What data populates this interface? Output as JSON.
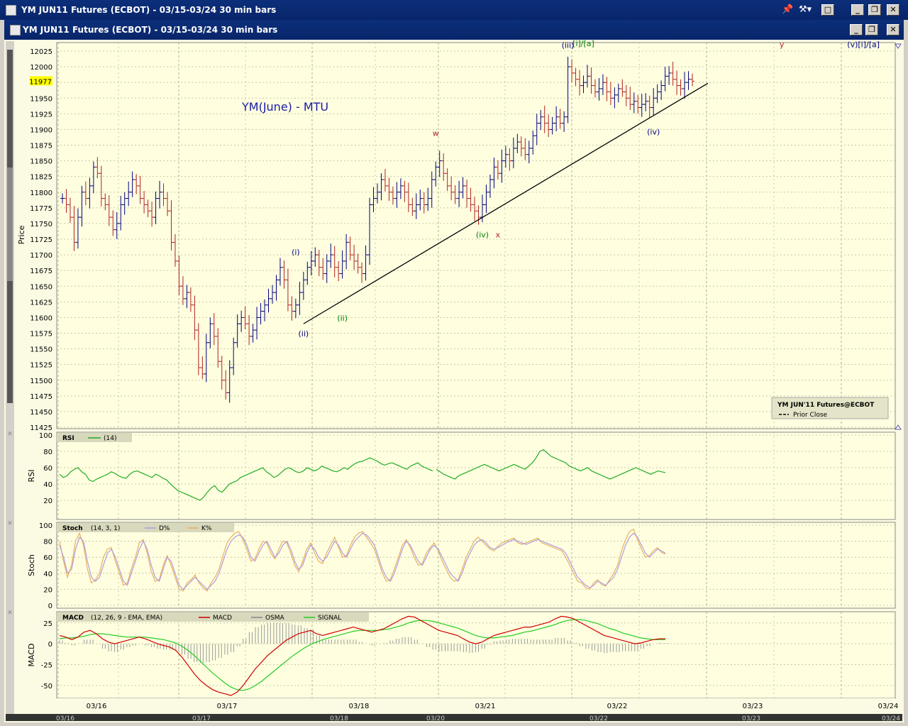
{
  "window": {
    "title": "YM JUN11 Futures (ECBOT) - 03/15-03/24  30 min bars",
    "subtitle": "YM JUN11 Futures (ECBOT) - 03/15-03/24  30 min bars"
  },
  "chart_data": {
    "type": "line",
    "price_panel": {
      "title": "YM(June) - MTU",
      "ylabel": "Price",
      "ylim": [
        11425,
        12040
      ],
      "yticks": [
        12025,
        12000,
        11975,
        11950,
        11925,
        11900,
        11875,
        11850,
        11825,
        11800,
        11775,
        11750,
        11725,
        11700,
        11675,
        11650,
        11625,
        11600,
        11575,
        11550,
        11525,
        11500,
        11475,
        11450,
        11425
      ],
      "current_price": "11977",
      "series_close": [
        11790,
        11780,
        11760,
        11720,
        11760,
        11800,
        11790,
        11810,
        11840,
        11830,
        11790,
        11780,
        11760,
        11740,
        11750,
        11780,
        11790,
        11800,
        11820,
        11810,
        11790,
        11780,
        11770,
        11760,
        11790,
        11800,
        11790,
        11770,
        11720,
        11690,
        11650,
        11630,
        11640,
        11620,
        11580,
        11520,
        11510,
        11560,
        11590,
        11570,
        11530,
        11500,
        11480,
        11520,
        11560,
        11590,
        11600,
        11590,
        11570,
        11580,
        11600,
        11610,
        11620,
        11630,
        11640,
        11660,
        11680,
        11660,
        11620,
        11610,
        11620,
        11640,
        11660,
        11680,
        11690,
        11700,
        11680,
        11670,
        11690,
        11700,
        11680,
        11670,
        11690,
        11720,
        11700,
        11690,
        11680,
        11670,
        11700,
        11780,
        11790,
        11800,
        11820,
        11810,
        11800,
        11790,
        11800,
        11810,
        11800,
        11780,
        11770,
        11780,
        11790,
        11780,
        11790,
        11820,
        11840,
        11850,
        11830,
        11810,
        11800,
        11790,
        11800,
        11810,
        11790,
        11780,
        11770,
        11760,
        11780,
        11800,
        11820,
        11840,
        11830,
        11850,
        11860,
        11850,
        11870,
        11880,
        11870,
        11860,
        11870,
        11890,
        11910,
        11920,
        11910,
        11900,
        11910,
        11920,
        11910,
        11920,
        12000,
        11990,
        11980,
        11970,
        11975,
        11985,
        11970,
        11960,
        11965,
        11975,
        11960,
        11950,
        11955,
        11965,
        11960,
        11950,
        11940,
        11945,
        11935,
        11940,
        11945,
        11935,
        11950,
        11960,
        11970,
        11985,
        11990,
        11980,
        11970,
        11965,
        11975,
        11980,
        11977
      ],
      "legend": {
        "name": "YM JUN'11 Futures@ECBOT",
        "item": "Prior Close"
      },
      "annotations": [
        {
          "text": "(iii)",
          "color": "#000080",
          "bar": 130,
          "price": 12030
        },
        {
          "text": "[i]/[a]",
          "color": "#008000",
          "bar": 134,
          "price": 12033
        },
        {
          "text": "y",
          "color": "#b22222",
          "bar": 185,
          "price": 12031
        },
        {
          "text": "(v)[i]/[a]",
          "color": "#000080",
          "bar": 206,
          "price": 12031
        },
        {
          "text": "w",
          "color": "#b22222",
          "bar": 96,
          "price": 11890
        },
        {
          "text": "(iv)",
          "color": "#000080",
          "bar": 152,
          "price": 11892
        },
        {
          "text": "(iv)",
          "color": "#008000",
          "bar": 108,
          "price": 11728
        },
        {
          "text": "x",
          "color": "#b22222",
          "bar": 112,
          "price": 11728
        },
        {
          "text": "(i)",
          "color": "#000080",
          "bar": 60,
          "price": 11700
        },
        {
          "text": "(ii)",
          "color": "#008000",
          "bar": 72,
          "price": 11595
        },
        {
          "text": "(ii)",
          "color": "#000080",
          "bar": 62,
          "price": 11570
        }
      ],
      "trendline": {
        "from": {
          "bar": 62,
          "price": 11590
        },
        "to": {
          "bar": 166,
          "price": 11976
        }
      }
    },
    "rsi_panel": {
      "label": "RSI",
      "params": "(14)",
      "ylabel": "RSI",
      "ylim": [
        0,
        100
      ],
      "yticks": [
        100,
        80,
        60,
        40,
        20
      ],
      "color": "#22aa22",
      "values": [
        52,
        48,
        50,
        55,
        58,
        60,
        55,
        52,
        45,
        43,
        46,
        48,
        50,
        52,
        55,
        53,
        50,
        48,
        47,
        52,
        55,
        56,
        54,
        52,
        50,
        48,
        52,
        50,
        47,
        45,
        40,
        36,
        32,
        30,
        28,
        26,
        24,
        22,
        20,
        24,
        30,
        35,
        38,
        32,
        30,
        35,
        40,
        42,
        44,
        48,
        50,
        52,
        54,
        56,
        58,
        60,
        55,
        52,
        48,
        50,
        54,
        58,
        60,
        58,
        55,
        54,
        56,
        60,
        58,
        56,
        58,
        62,
        60,
        58,
        56,
        55,
        57,
        60,
        58,
        62,
        65,
        67,
        68,
        70,
        72,
        70,
        68,
        65,
        63,
        65,
        66,
        64,
        62,
        60,
        58,
        62,
        64,
        66,
        62,
        60,
        58,
        56,
        58,
        55,
        52,
        50,
        48,
        46,
        50,
        52,
        54,
        56,
        58,
        60,
        62,
        64,
        62,
        60,
        58,
        56,
        58,
        60,
        62,
        64,
        62,
        60,
        58,
        62,
        66,
        72,
        80,
        82,
        78,
        74,
        72,
        70,
        68,
        66,
        62,
        60,
        58,
        56,
        58,
        60,
        56,
        54,
        52,
        50,
        48,
        46,
        48,
        50,
        52,
        54,
        56,
        58,
        60,
        58,
        56,
        54,
        52,
        54,
        56,
        55,
        54
      ],
      "gap_index": 102
    },
    "stoch_panel": {
      "label": "Stoch",
      "params": "(14, 3, 1)",
      "ylabel": "Stoch",
      "ylim": [
        0,
        100
      ],
      "yticks": [
        100,
        80,
        60,
        40,
        20,
        0
      ],
      "series": [
        {
          "name": "D%",
          "color": "#b09ce0",
          "values": [
            75,
            60,
            40,
            45,
            70,
            85,
            80,
            55,
            35,
            30,
            35,
            50,
            65,
            70,
            60,
            45,
            30,
            25,
            40,
            55,
            70,
            80,
            70,
            50,
            35,
            30,
            45,
            60,
            55,
            40,
            25,
            20,
            25,
            30,
            35,
            30,
            25,
            20,
            25,
            30,
            40,
            55,
            70,
            80,
            85,
            88,
            85,
            75,
            60,
            55,
            65,
            75,
            80,
            70,
            60,
            65,
            75,
            80,
            70,
            55,
            45,
            50,
            65,
            75,
            70,
            60,
            55,
            60,
            70,
            80,
            75,
            65,
            60,
            70,
            80,
            85,
            90,
            88,
            82,
            75,
            60,
            45,
            35,
            30,
            40,
            55,
            70,
            80,
            75,
            65,
            55,
            50,
            60,
            70,
            75,
            70,
            60,
            50,
            40,
            35,
            30,
            40,
            55,
            65,
            75,
            80,
            82,
            78,
            72,
            70,
            72,
            75,
            78,
            80,
            82,
            80,
            78,
            76,
            78,
            80,
            82,
            80,
            78,
            76,
            74,
            72,
            70,
            65,
            55,
            45,
            35,
            30,
            25,
            22,
            25,
            30,
            28,
            25,
            30,
            35,
            45,
            60,
            75,
            85,
            90,
            85,
            75,
            65,
            60,
            65,
            70,
            68,
            65
          ],
          "_note": ""
        },
        {
          "name": "K%",
          "color": "#e8b060",
          "values": [
            80,
            55,
            35,
            50,
            80,
            90,
            75,
            45,
            28,
            32,
            40,
            60,
            70,
            72,
            55,
            40,
            25,
            28,
            45,
            60,
            78,
            82,
            65,
            42,
            30,
            32,
            50,
            62,
            50,
            35,
            20,
            18,
            28,
            32,
            38,
            28,
            22,
            18,
            28,
            35,
            45,
            62,
            78,
            85,
            90,
            92,
            82,
            70,
            55,
            58,
            70,
            80,
            78,
            65,
            58,
            70,
            80,
            78,
            65,
            50,
            42,
            55,
            70,
            78,
            65,
            55,
            52,
            65,
            75,
            85,
            72,
            60,
            62,
            75,
            85,
            90,
            92,
            85,
            78,
            70,
            55,
            40,
            30,
            32,
            45,
            60,
            75,
            82,
            72,
            60,
            50,
            52,
            65,
            72,
            78,
            68,
            55,
            45,
            35,
            30,
            32,
            45,
            60,
            70,
            80,
            85,
            80,
            75,
            70,
            68,
            74,
            78,
            80,
            82,
            84,
            78,
            76,
            78,
            80,
            82,
            84,
            78,
            76,
            74,
            72,
            70,
            68,
            60,
            50,
            40,
            30,
            28,
            22,
            20,
            28,
            32,
            26,
            24,
            32,
            40,
            50,
            68,
            82,
            92,
            95,
            82,
            70,
            60,
            62,
            68,
            72,
            66,
            64
          ]
        }
      ]
    },
    "macd_panel": {
      "label": "MACD",
      "params": "(12, 26, 9 - EMA, EMA)",
      "ylabel": "MACD",
      "ylim": [
        -62,
        35
      ],
      "yticks": [
        25,
        0,
        -25,
        -50
      ],
      "series": [
        {
          "name": "MACD",
          "color": "#cc0000",
          "values": [
            10,
            8,
            5,
            8,
            14,
            16,
            12,
            6,
            2,
            0,
            2,
            4,
            6,
            8,
            6,
            3,
            0,
            -2,
            -4,
            -8,
            -16,
            -26,
            -36,
            -44,
            -50,
            -55,
            -58,
            -60,
            -62,
            -58,
            -50,
            -40,
            -30,
            -22,
            -14,
            -8,
            -2,
            4,
            8,
            12,
            14,
            16,
            12,
            10,
            12,
            14,
            16,
            18,
            20,
            18,
            16,
            14,
            16,
            18,
            22,
            26,
            30,
            33,
            32,
            28,
            24,
            20,
            16,
            14,
            12,
            10,
            6,
            2,
            0,
            2,
            6,
            10,
            12,
            14,
            16,
            18,
            20,
            20,
            22,
            24,
            26,
            30,
            33,
            32,
            30,
            26,
            22,
            18,
            14,
            10,
            8,
            6,
            4,
            2,
            0,
            1,
            3,
            5,
            6,
            6
          ],
          "_note": ""
        },
        {
          "name": "OSMA",
          "color": "#888888",
          "values": []
        },
        {
          "name": "SIGNAL",
          "color": "#22cc22",
          "values": [
            6,
            7,
            7,
            8,
            9,
            11,
            12,
            12,
            11,
            10,
            9,
            8,
            8,
            8,
            8,
            7,
            6,
            5,
            3,
            1,
            -3,
            -8,
            -14,
            -21,
            -28,
            -35,
            -41,
            -47,
            -52,
            -55,
            -56,
            -54,
            -50,
            -45,
            -39,
            -33,
            -27,
            -21,
            -15,
            -10,
            -5,
            -1,
            2,
            5,
            7,
            9,
            11,
            13,
            15,
            16,
            16,
            16,
            16,
            17,
            18,
            20,
            22,
            25,
            27,
            28,
            28,
            27,
            25,
            23,
            21,
            19,
            16,
            13,
            10,
            8,
            7,
            7,
            8,
            9,
            10,
            12,
            14,
            15,
            17,
            19,
            21,
            23,
            26,
            28,
            29,
            29,
            28,
            26,
            24,
            21,
            18,
            16,
            13,
            11,
            9,
            7,
            6,
            5,
            5,
            5
          ],
          "_note": ""
        }
      ],
      "legend": [
        {
          "name": "MACD",
          "color": "#cc0000"
        },
        {
          "name": "OSMA",
          "color": "#888888"
        },
        {
          "name": "SIGNAL",
          "color": "#22cc22"
        }
      ]
    },
    "x_axis": {
      "labels": [
        "03/16",
        "03/17",
        "03/18",
        "03/21",
        "03/22",
        "03/23",
        "03/24"
      ],
      "scroll_labels": [
        "03/16",
        "03/17",
        "03/18",
        "03/20",
        "03/22",
        "03/23",
        "03/24"
      ]
    }
  }
}
